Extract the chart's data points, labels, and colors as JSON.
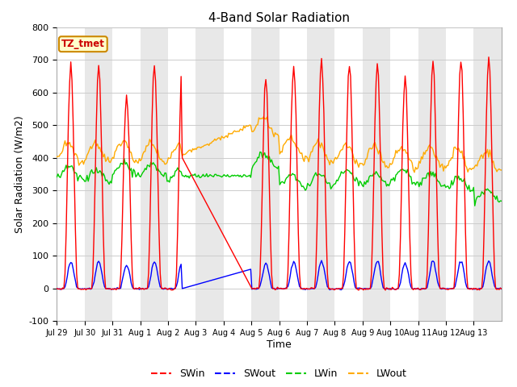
{
  "title": "4-Band Solar Radiation",
  "ylabel": "Solar Radiation (W/m2)",
  "xlabel": "Time",
  "ylim": [
    -100,
    800
  ],
  "yticks": [
    -100,
    0,
    100,
    200,
    300,
    400,
    500,
    600,
    700,
    800
  ],
  "xtick_labels": [
    "Jul 29",
    "Jul 30",
    "Jul 31",
    "Aug 1",
    "Aug 2",
    "Aug 3",
    "Aug 4",
    "Aug 5",
    "Aug 6",
    "Aug 7",
    "Aug 8",
    "Aug 9",
    "Aug 10",
    "Aug 11",
    "Aug 12",
    "Aug 13"
  ],
  "colors": {
    "SWin": "#ff0000",
    "SWout": "#0000ff",
    "LWin": "#00cc00",
    "LWout": "#ffaa00"
  },
  "fig_bg": "#ffffff",
  "plot_bg": "#f0f0f0",
  "band_colors": [
    "#ffffff",
    "#e8e8e8"
  ],
  "grid_color": "#cccccc",
  "annotation_label": "TZ_tmet",
  "annotation_bg": "#ffffcc",
  "annotation_border": "#cc8800",
  "annotation_text_color": "#cc0000",
  "n_days": 16,
  "hours_per_day": 24,
  "sw_peaks": [
    690,
    680,
    600,
    690,
    685,
    0,
    0,
    640,
    690,
    700,
    680,
    690,
    650,
    695,
    700,
    705
  ],
  "lwin_bases": [
    355,
    345,
    365,
    360,
    345,
    345,
    350,
    390,
    330,
    330,
    340,
    335,
    345,
    330,
    320,
    285
  ],
  "lwout_bases": [
    415,
    415,
    420,
    415,
    410,
    425,
    460,
    495,
    430,
    415,
    410,
    405,
    400,
    400,
    395,
    390
  ]
}
